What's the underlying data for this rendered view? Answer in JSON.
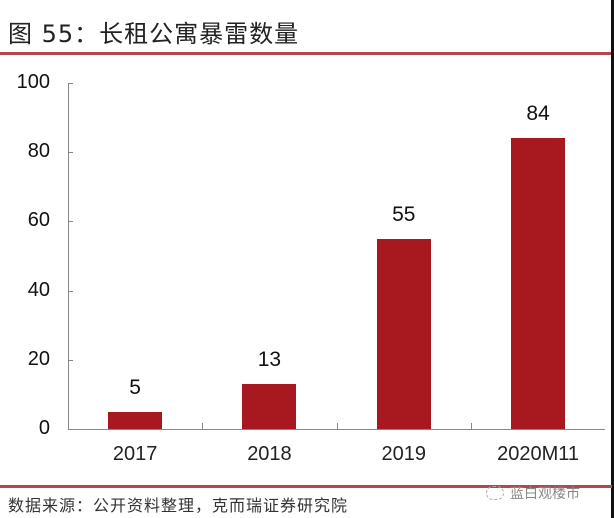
{
  "header": {
    "title": "图 55：长租公寓暴雷数量"
  },
  "footer": {
    "source": "数据来源：公开资料整理，克而瑞证券研究院",
    "watermark": "蓝白观楼市",
    "watermark_icon": "wechat-icon"
  },
  "colors": {
    "bar": "#a8191f",
    "rule": "#b0484c",
    "axis": "#888888"
  },
  "chart_data": {
    "type": "bar",
    "title": "长租公寓暴雷数量",
    "categories": [
      "2017",
      "2018",
      "2019",
      "2020M11"
    ],
    "values": [
      5,
      13,
      55,
      84
    ],
    "data_labels": [
      "5",
      "13",
      "55",
      "84"
    ],
    "xlabel": "",
    "ylabel": "",
    "ylim": [
      0,
      100
    ],
    "yticks": [
      "0",
      "20",
      "40",
      "60",
      "80",
      "100"
    ],
    "grid": false,
    "legend": null
  }
}
